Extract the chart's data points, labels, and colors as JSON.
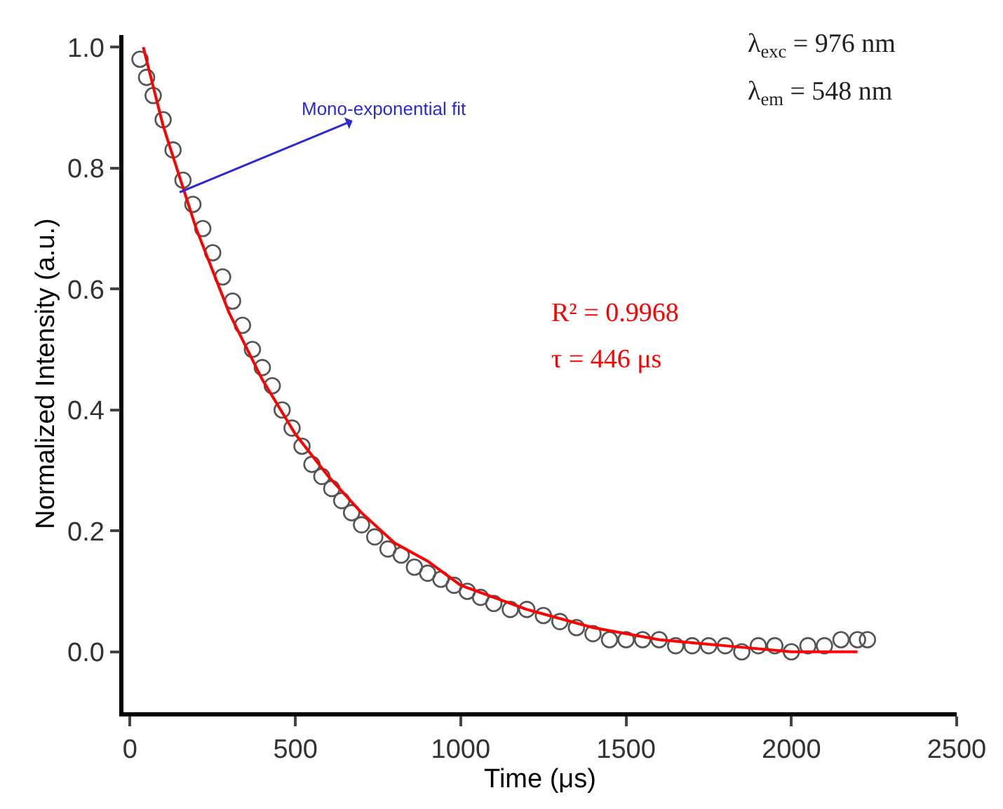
{
  "chart_data": {
    "type": "scatter",
    "xlabel": "Time (μs)",
    "ylabel": "Normalized Intensity (a.u.)",
    "xlim": [
      -20,
      2500
    ],
    "xticks": [
      0,
      500,
      1000,
      1500,
      2000,
      2500
    ],
    "ylim": [
      -0.1,
      1.02
    ],
    "yticks": [
      {
        "value": 0,
        "label": "0.0"
      },
      {
        "value": 0.2,
        "label": "0.2"
      },
      {
        "value": 0.4,
        "label": "0.4"
      },
      {
        "value": 0.6,
        "label": "0.6"
      },
      {
        "value": 0.8,
        "label": "0.8"
      },
      {
        "value": 1,
        "label": "1.0"
      }
    ],
    "grid": false,
    "legend": false,
    "series": [
      {
        "marker": "circle",
        "color": "#555555",
        "x": [
          30,
          50,
          70,
          100,
          130,
          160,
          190,
          220,
          250,
          280,
          310,
          340,
          370,
          400,
          430,
          460,
          490,
          520,
          550,
          580,
          610,
          640,
          670,
          700,
          740,
          780,
          820,
          860,
          900,
          940,
          980,
          1020,
          1060,
          1100,
          1150,
          1200,
          1250,
          1300,
          1350,
          1400,
          1450,
          1500,
          1550,
          1600,
          1650,
          1700,
          1750,
          1800,
          1850,
          1900,
          1950,
          2000,
          2050,
          2100,
          2150,
          2200,
          2230
        ],
        "values": [
          0.98,
          0.95,
          0.92,
          0.88,
          0.83,
          0.78,
          0.74,
          0.7,
          0.66,
          0.62,
          0.58,
          0.54,
          0.5,
          0.47,
          0.44,
          0.4,
          0.37,
          0.34,
          0.31,
          0.29,
          0.27,
          0.25,
          0.23,
          0.21,
          0.19,
          0.17,
          0.16,
          0.14,
          0.13,
          0.12,
          0.11,
          0.1,
          0.09,
          0.08,
          0.07,
          0.07,
          0.06,
          0.05,
          0.04,
          0.03,
          0.02,
          0.02,
          0.02,
          0.02,
          0.01,
          0.01,
          0.01,
          0.01,
          0,
          0.01,
          0.01,
          0,
          0.01,
          0.01,
          0.02,
          0.02,
          0.02
        ]
      },
      {
        "type": "line",
        "marker": "none",
        "line_style": "solid",
        "color": "#ff0000",
        "x": [
          40,
          100,
          200,
          300,
          400,
          500,
          600,
          700,
          800,
          900,
          1000,
          1200,
          1400,
          1600,
          1800,
          2000,
          2200
        ],
        "values": [
          1,
          0.87,
          0.7,
          0.56,
          0.45,
          0.36,
          0.29,
          0.23,
          0.18,
          0.15,
          0.11,
          0.07,
          0.04,
          0.02,
          0.01,
          0,
          0
        ]
      }
    ],
    "annotations": [
      {
        "text": "Mono-exponential fit",
        "x": 150,
        "y": 0.76
      },
      "λ$_{exc}$ = 976 nm",
      "λ$_{em}$ = 548 nm",
      "R² = 0.9968",
      "τ = 446 μs"
    ]
  }
}
